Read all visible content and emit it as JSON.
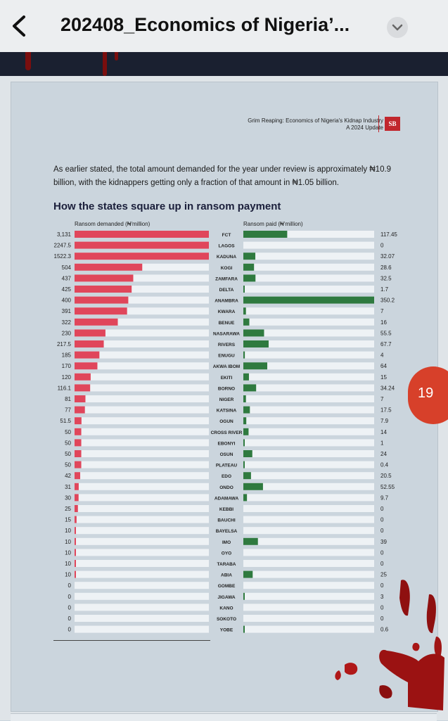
{
  "header": {
    "title": "202408_Economics of Nigeria’...",
    "back_icon": "chevron-left-icon",
    "menu_icon": "chevron-down-icon"
  },
  "document": {
    "header_line1": "Grim Reaping: Economics of Nigeria's Kidnap Industry",
    "header_line2": "A 2024 Update",
    "logo_text": "SB",
    "intro": "As earlier stated, the total amount demanded for the year under review is approximately ₦10.9 billion, with the kidnappers getting only a fraction of that amount in ₦1.05 billion.",
    "heading": "How the states square up in ransom payment"
  },
  "page_badge": "19",
  "colors": {
    "demanded": "#e0465b",
    "paid": "#2f7a3f",
    "track": "#eef2f5",
    "brand": "#c1272d"
  },
  "chart_data": {
    "type": "bar",
    "left_label": "Ransom demanded (₦'million)",
    "right_label": "Ransom paid (₦'million)",
    "categories": [
      "FCT",
      "LAGOS",
      "KADUNA",
      "KOGI",
      "ZAMFARA",
      "DELTA",
      "ANAMBRA",
      "KWARA",
      "BENUE",
      "NASARAWA",
      "RIVERS",
      "ENUGU",
      "AKWA IBOM",
      "EKITI",
      "BORNO",
      "NIGER",
      "KATSINA",
      "OGUN",
      "CROSS RIVER",
      "EBONYI",
      "OSUN",
      "PLATEAU",
      "EDO",
      "ONDO",
      "ADAMAWA",
      "KEBBI",
      "BAUCHI",
      "BAYELSA",
      "IMO",
      "OYO",
      "TARABA",
      "ABIA",
      "GOMBE",
      "JIGAWA",
      "KANO",
      "SOKOTO",
      "YOBE"
    ],
    "demanded_labels": [
      "3,131",
      "2247.5",
      "1522.3",
      "504",
      "437",
      "425",
      "400",
      "391",
      "322",
      "230",
      "217.5",
      "185",
      "170",
      "120",
      "116.1",
      "81",
      "77",
      "51.5",
      "50",
      "50",
      "50",
      "50",
      "42",
      "31",
      "30",
      "25",
      "15",
      "10",
      "10",
      "10",
      "10",
      "10",
      "0",
      "0",
      "0",
      "0",
      "0"
    ],
    "demanded": [
      3131,
      2247.5,
      1522.3,
      504,
      437,
      425,
      400,
      391,
      322,
      230,
      217.5,
      185,
      170,
      120,
      116.1,
      81,
      77,
      51.5,
      50,
      50,
      50,
      50,
      42,
      31,
      30,
      25,
      15,
      10,
      10,
      10,
      10,
      10,
      0,
      0,
      0,
      0,
      0
    ],
    "paid_labels": [
      "117.45",
      "0",
      "32.07",
      "28.6",
      "32.5",
      "1.7",
      "350.2",
      "7",
      "16",
      "55.5",
      "67.7",
      "4",
      "64",
      "15",
      "34.24",
      "7",
      "17.5",
      "7.9",
      "14",
      "1",
      "24",
      "0.4",
      "20.5",
      "52.55",
      "9.7",
      "0",
      "0",
      "0",
      "39",
      "0",
      "0",
      "25",
      "0",
      "3",
      "0",
      "0",
      "0.6"
    ],
    "paid": [
      117.45,
      0,
      32.07,
      28.6,
      32.5,
      1.7,
      350.2,
      7,
      16,
      55.5,
      67.7,
      4,
      64,
      15,
      34.24,
      7,
      17.5,
      7.9,
      14,
      1,
      24,
      0.4,
      20.5,
      52.55,
      9.7,
      0,
      0,
      0,
      39,
      0,
      0,
      25,
      0,
      3,
      0,
      0,
      0.6
    ],
    "demanded_scale_max": 1000,
    "paid_scale_max": 350.2
  }
}
